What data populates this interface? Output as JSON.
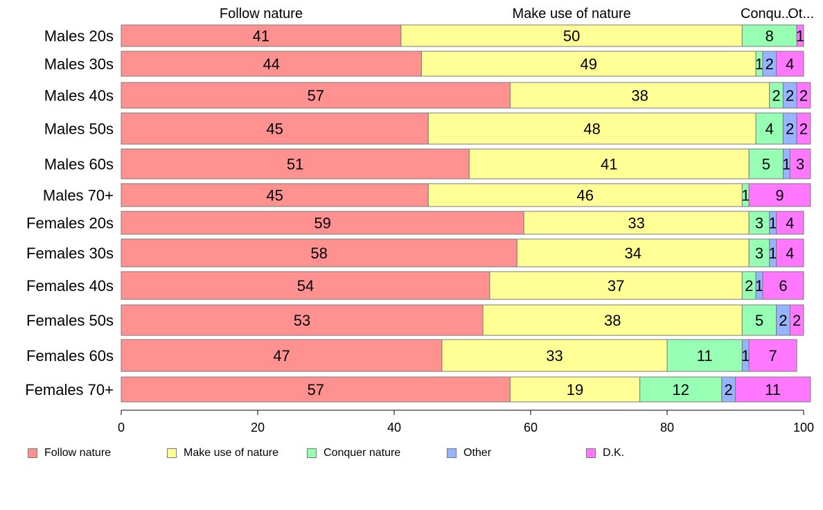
{
  "chart_data": {
    "type": "bar",
    "orientation": "horizontal",
    "stacked": true,
    "title": "",
    "xlabel": "",
    "ylabel": "",
    "xlim": [
      0,
      100
    ],
    "ticks": [
      "0",
      "20",
      "40",
      "60",
      "80",
      "100"
    ],
    "top_labels": [
      "Follow nature",
      "Make use of nature",
      "Conqu...",
      "Ot..."
    ],
    "categories": [
      "Males 20s",
      "Males 30s",
      "Males 40s",
      "Males 50s",
      "Males 60s",
      "Males 70+",
      "Females 20s",
      "Females 30s",
      "Females 40s",
      "Females 50s",
      "Females 60s",
      "Females 70+"
    ],
    "series": [
      {
        "name": "Follow nature",
        "color": "#ff9290",
        "values": [
          41,
          44,
          57,
          45,
          51,
          45,
          59,
          58,
          54,
          53,
          47,
          57
        ]
      },
      {
        "name": "Make use of nature",
        "color": "#ffff96",
        "values": [
          50,
          49,
          38,
          48,
          41,
          46,
          33,
          34,
          37,
          38,
          33,
          19
        ]
      },
      {
        "name": "Conquer nature",
        "color": "#96ffb4",
        "values": [
          8,
          1,
          2,
          4,
          5,
          1,
          3,
          3,
          2,
          5,
          11,
          12
        ]
      },
      {
        "name": "Other",
        "color": "#96b4ff",
        "values": [
          0,
          2,
          2,
          2,
          1,
          0,
          1,
          1,
          1,
          2,
          1,
          2
        ]
      },
      {
        "name": "D.K.",
        "color": "#ff78ff",
        "values": [
          1,
          4,
          2,
          2,
          3,
          9,
          4,
          4,
          6,
          2,
          7,
          11
        ]
      }
    ],
    "legend_position": "bottom"
  }
}
